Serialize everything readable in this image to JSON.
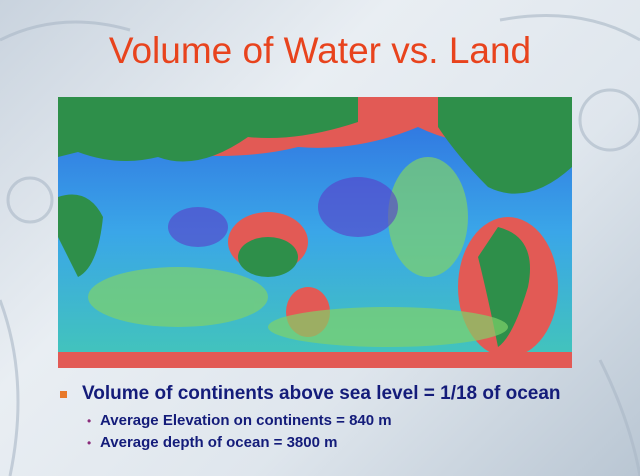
{
  "slide": {
    "title": "Volume of Water vs. Land",
    "bullets": [
      {
        "text": "Volume of continents above sea level = 1/18 of ocean",
        "sub": [
          "Average Elevation on continents = 840 m",
          "Average depth of ocean = 3800 m"
        ]
      }
    ]
  }
}
